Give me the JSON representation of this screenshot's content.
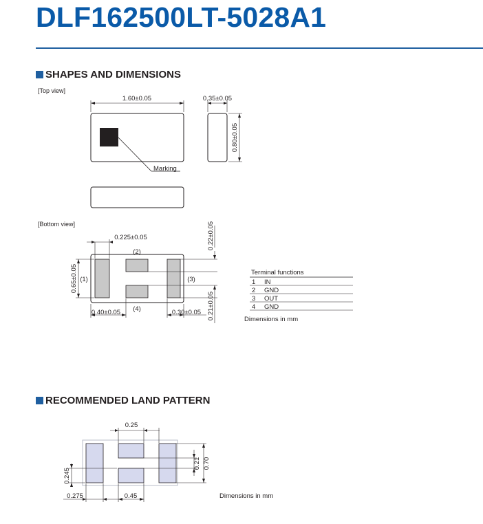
{
  "title": "DLF162500LT-5028A1",
  "section1": {
    "heading": "SHAPES AND DIMENSIONS",
    "top_view_label": "[Top view]",
    "bottom_view_label": "[Bottom view]",
    "dims": {
      "length": "1.60±0.05",
      "thickness": "0.35±0.05",
      "width": "0.80±0.05",
      "marking": "Marking",
      "gap_225": "0.225±0.05",
      "end_022": "0.22±0.05",
      "height_065": "0.65±0.05",
      "end_021": "0.21±0.05",
      "left_040": "0.40±0.05",
      "right_030": "0.30±0.05"
    },
    "terminal_labels": [
      "(1)",
      "(2)",
      "(3)",
      "(4)"
    ],
    "terminal_functions": {
      "heading": "Terminal functions",
      "rows": [
        {
          "num": "1",
          "func": "IN"
        },
        {
          "num": "2",
          "func": "GND"
        },
        {
          "num": "3",
          "func": "OUT"
        },
        {
          "num": "4",
          "func": "GND"
        }
      ]
    },
    "units_note": "Dimensions in mm"
  },
  "section2": {
    "heading": "RECOMMENDED LAND PATTERN",
    "dims": {
      "top_025": "0.25",
      "right_021": "0.21",
      "right_070": "0.70",
      "left_0245": "0.245",
      "bottom_0275": "0.275",
      "bottom_045": "0.45"
    },
    "units_note": "Dimensions in mm"
  },
  "colors": {
    "title_blue": "#0a5aa8",
    "pad_gray": "#c8c8c8",
    "land_lilac": "#d6d9ee",
    "marking_black": "#231f20"
  }
}
